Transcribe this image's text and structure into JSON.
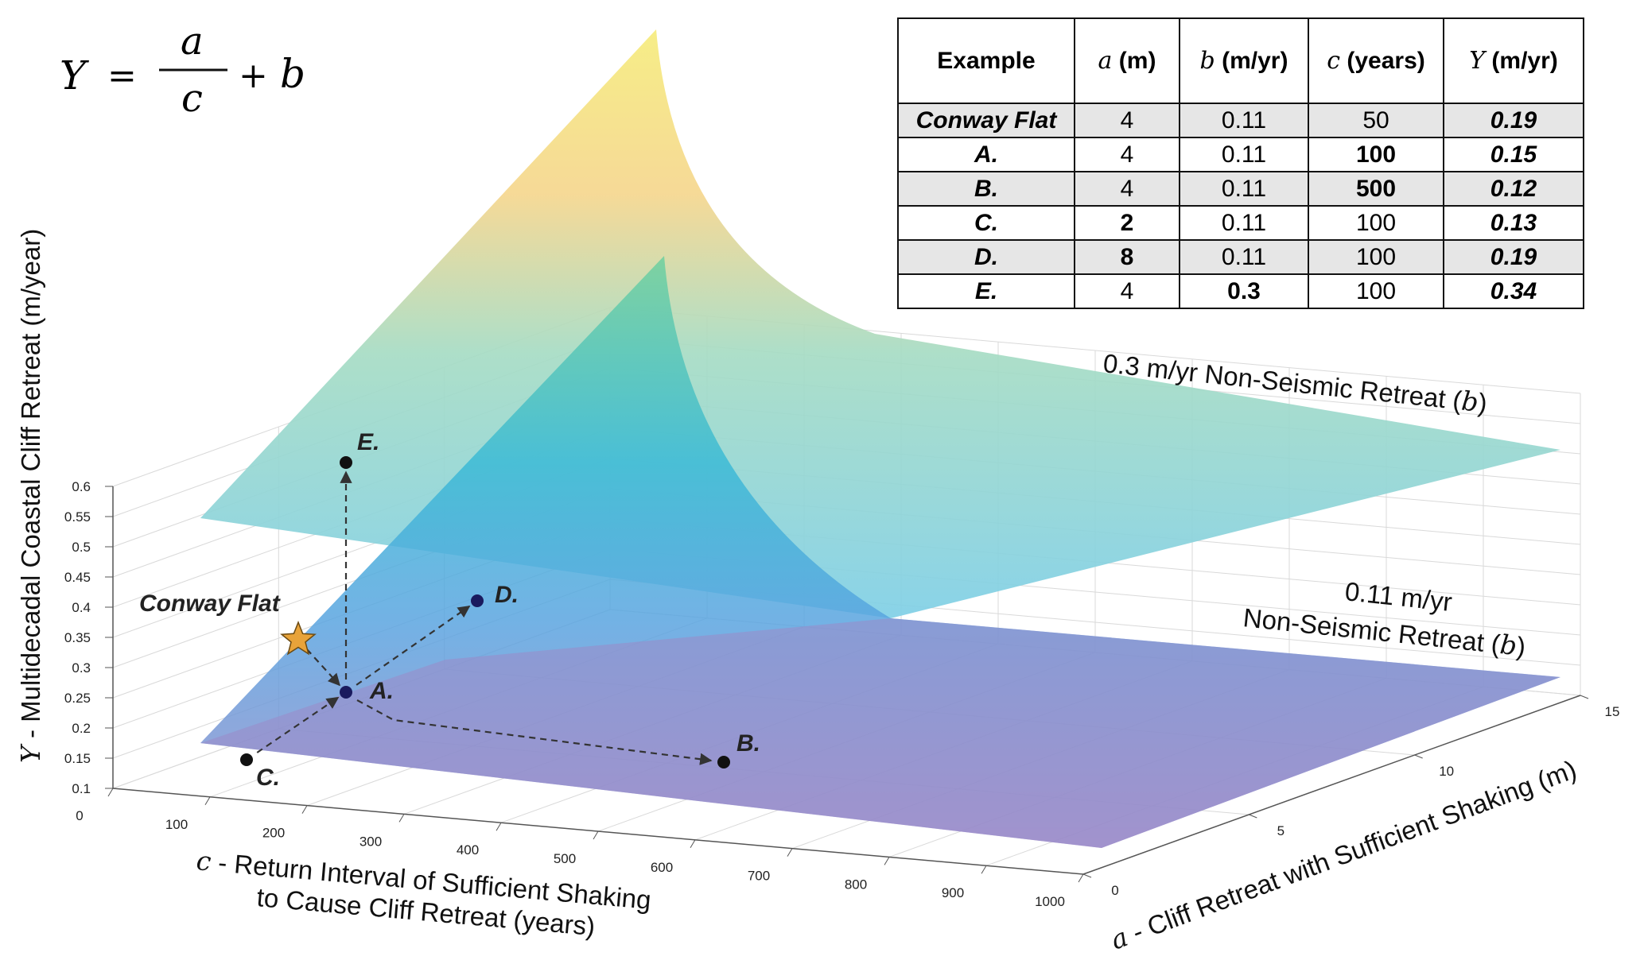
{
  "chart_data": {
    "type": "surface",
    "equation": {
      "lhs": "Υ",
      "eq": "=",
      "num": "a",
      "den": "c",
      "plus": "+",
      "b": "b"
    },
    "z_axis": {
      "symbol": "Υ",
      "label": " - Multidecadal Coastal Cliff Retreat (m/year)",
      "ticks": [
        "0.1",
        "0.15",
        "0.2",
        "0.25",
        "0.3",
        "0.35",
        "0.4",
        "0.45",
        "0.5",
        "0.55",
        "0.6"
      ],
      "range": [
        0.1,
        0.6
      ]
    },
    "x_axis": {
      "symbol": "c",
      "label_line1": " - Return Interval of Sufficient Shaking",
      "label_line2": "to Cause Cliff Retreat (years)",
      "ticks": [
        "0",
        "100",
        "200",
        "300",
        "400",
        "500",
        "600",
        "700",
        "800",
        "900",
        "1000"
      ],
      "range": [
        0,
        1000
      ]
    },
    "y_axis": {
      "symbol": "a",
      "label": " - Cliff Retreat with Sufficient Shaking (m)",
      "ticks": [
        "0",
        "5",
        "10",
        "15"
      ],
      "range": [
        0,
        15
      ]
    },
    "surfaces": [
      {
        "b": 0.3,
        "label": "0.3 m/yr Non-Seismic Retreat (",
        "symbol": "b",
        "close": ")"
      },
      {
        "b": 0.11,
        "label_line1": "0.11 m/yr",
        "label_line2": "Non-Seismic Retreat (",
        "symbol": "b",
        "close": ")"
      }
    ],
    "points": [
      {
        "name": "Conway Flat",
        "a": 4,
        "b": 0.11,
        "c": 50,
        "Y": 0.19,
        "marker": "star"
      },
      {
        "name": "A.",
        "a": 4,
        "b": 0.11,
        "c": 100,
        "Y": 0.15
      },
      {
        "name": "B.",
        "a": 4,
        "b": 0.11,
        "c": 500,
        "Y": 0.12
      },
      {
        "name": "C.",
        "a": 2,
        "b": 0.11,
        "c": 100,
        "Y": 0.13
      },
      {
        "name": "D.",
        "a": 8,
        "b": 0.11,
        "c": 100,
        "Y": 0.19
      },
      {
        "name": "E.",
        "a": 4,
        "b": 0.3,
        "c": 100,
        "Y": 0.34
      }
    ],
    "arrows": [
      [
        "Conway Flat",
        "A."
      ],
      [
        "C.",
        "A."
      ],
      [
        "A.",
        "D."
      ],
      [
        "A.",
        "E."
      ],
      [
        "A.",
        "B."
      ]
    ],
    "colors": {
      "surface_b03_high": "#f5ea7a",
      "surface_b03_mid": "#9fd9c6",
      "surface_b03_low": "#7fcfe6",
      "surface_b011_high": "#5cc9a8",
      "surface_b011_mid": "#35a9e0",
      "surface_b011_low": "#9a8bc8",
      "star": "#e8a33a"
    }
  },
  "table": {
    "headers": [
      {
        "sym": "",
        "text": "Example"
      },
      {
        "sym": "a",
        "text": " (m)"
      },
      {
        "sym": "b",
        "text": " (m/yr)"
      },
      {
        "sym": "c",
        "text": " (years)"
      },
      {
        "sym": "Υ",
        "text": " (m/yr)"
      }
    ],
    "rows": [
      {
        "name": "Conway Flat",
        "a": "4",
        "b": "0.11",
        "c": "50",
        "Y": "0.19"
      },
      {
        "name": "A.",
        "a": "4",
        "b": "0.11",
        "c": "100",
        "Y": "0.15"
      },
      {
        "name": "B.",
        "a": "4",
        "b": "0.11",
        "c": "500",
        "Y": "0.12"
      },
      {
        "name": "C.",
        "a": "2",
        "b": "0.11",
        "c": "100",
        "Y": "0.13"
      },
      {
        "name": "D.",
        "a": "8",
        "b": "0.11",
        "c": "100",
        "Y": "0.19"
      },
      {
        "name": "E.",
        "a": "4",
        "b": "0.3",
        "c": "100",
        "Y": "0.34"
      }
    ]
  }
}
